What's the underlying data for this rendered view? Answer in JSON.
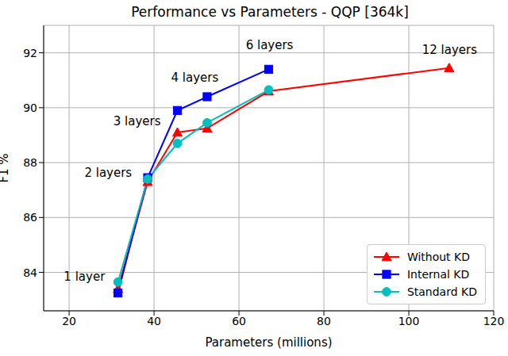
{
  "chart_data": {
    "type": "line",
    "title": "Performance vs Parameters - QQP [364k]",
    "x_label": "Parameters (millions)",
    "y_label": "F1 %",
    "x": [
      31.5,
      38.5,
      45.5,
      52.5,
      67,
      109.5
    ],
    "series": [
      {
        "name": "Without KD",
        "color": "#ff0000",
        "marker": "triangle",
        "values": [
          83.4,
          87.3,
          89.1,
          89.25,
          90.6,
          91.45
        ]
      },
      {
        "name": "Internal KD",
        "color": "#0000ff",
        "marker": "square",
        "values": [
          83.25,
          87.45,
          89.9,
          90.4,
          91.4,
          null
        ]
      },
      {
        "name": "Standard KD",
        "color": "#00bfbf",
        "marker": "circle",
        "values": [
          83.65,
          87.4,
          88.7,
          89.45,
          90.65,
          null
        ]
      }
    ],
    "xlim": [
      14,
      120
    ],
    "xticks": [
      20,
      40,
      60,
      80,
      100,
      120
    ],
    "ylim": [
      82.6,
      93
    ],
    "yticks": [
      84,
      86,
      88,
      90,
      92
    ],
    "grid": true,
    "legend": "lower right",
    "annotations": [
      {
        "text": "1 layer",
        "x": 23.6,
        "y": 83.85
      },
      {
        "text": "2 layers",
        "x": 29.2,
        "y": 87.65
      },
      {
        "text": "3 layers",
        "x": 36,
        "y": 89.5
      },
      {
        "text": "4 layers",
        "x": 49.6,
        "y": 91.1
      },
      {
        "text": "6 layers",
        "x": 67.2,
        "y": 92.3
      },
      {
        "text": "12 layers",
        "x": 109.6,
        "y": 92.1
      }
    ]
  }
}
